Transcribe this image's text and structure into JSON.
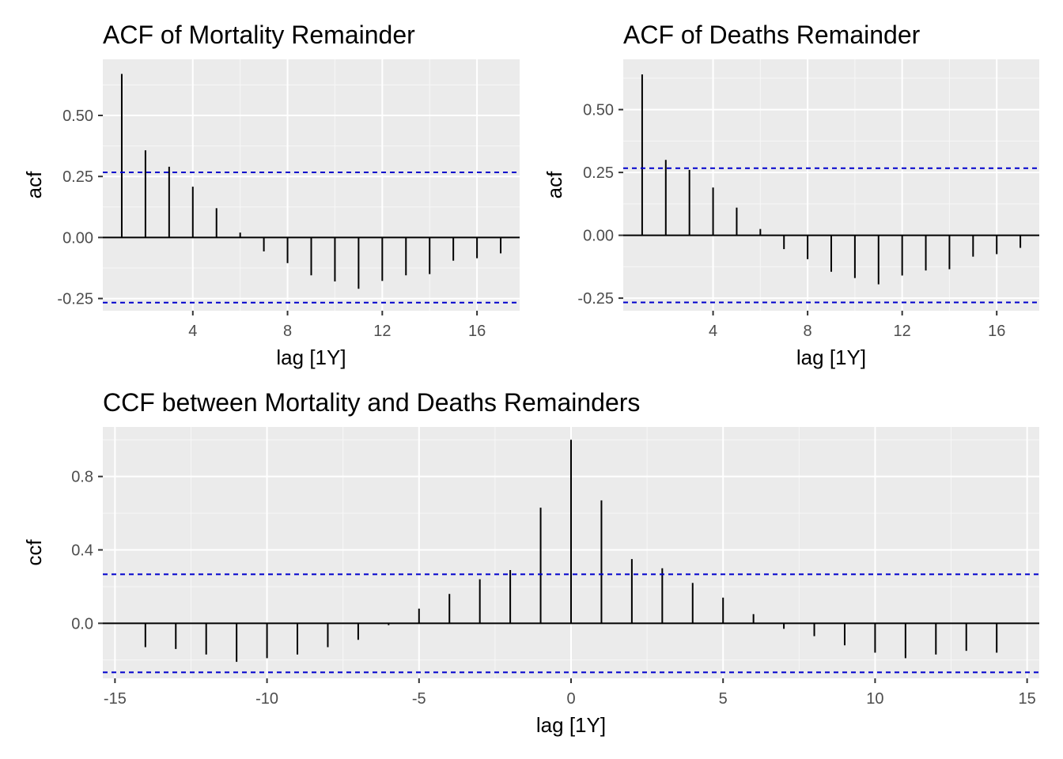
{
  "chart_data": [
    {
      "type": "bar",
      "title": "ACF of Mortality Remainder",
      "xlabel": "lag [1Y]",
      "ylabel": "acf",
      "xlim": [
        0.2,
        17.8
      ],
      "ylim": [
        -0.3,
        0.73
      ],
      "xticks": [
        4,
        8,
        12,
        16
      ],
      "xtick_labels": [
        "4",
        "8",
        "12",
        "16"
      ],
      "yticks": [
        -0.25,
        0,
        0.25,
        0.5
      ],
      "ytick_labels": [
        "-0.25",
        "0.00",
        "0.25",
        "0.50"
      ],
      "ci": 0.267,
      "ci_color": "#0000cc",
      "background": "#ebebeb",
      "grid": true,
      "x": [
        1,
        2,
        3,
        4,
        5,
        6,
        7,
        8,
        9,
        10,
        11,
        12,
        13,
        14,
        15,
        16,
        17
      ],
      "values": [
        0.67,
        0.357,
        0.29,
        0.208,
        0.12,
        0.02,
        -0.057,
        -0.105,
        -0.155,
        -0.18,
        -0.21,
        -0.178,
        -0.155,
        -0.15,
        -0.095,
        -0.085,
        -0.065
      ]
    },
    {
      "type": "bar",
      "title": "ACF of Deaths Remainder",
      "xlabel": "lag [1Y]",
      "ylabel": "acf",
      "xlim": [
        0.2,
        17.8
      ],
      "ylim": [
        -0.3,
        0.7
      ],
      "xticks": [
        4,
        8,
        12,
        16
      ],
      "xtick_labels": [
        "4",
        "8",
        "12",
        "16"
      ],
      "yticks": [
        -0.25,
        0,
        0.25,
        0.5
      ],
      "ytick_labels": [
        "-0.25",
        "0.00",
        "0.25",
        "0.50"
      ],
      "ci": 0.267,
      "ci_color": "#0000cc",
      "background": "#ebebeb",
      "grid": true,
      "x": [
        1,
        2,
        3,
        4,
        5,
        6,
        7,
        8,
        9,
        10,
        11,
        12,
        13,
        14,
        15,
        16,
        17
      ],
      "values": [
        0.64,
        0.3,
        0.26,
        0.19,
        0.11,
        0.025,
        -0.055,
        -0.095,
        -0.145,
        -0.17,
        -0.195,
        -0.16,
        -0.14,
        -0.135,
        -0.085,
        -0.075,
        -0.05
      ]
    },
    {
      "type": "bar",
      "title": "CCF between Mortality and Deaths Remainders",
      "xlabel": "lag [1Y]",
      "ylabel": "ccf",
      "xlim": [
        -15.4,
        15.4
      ],
      "ylim": [
        -0.3,
        1.07
      ],
      "xticks": [
        -15,
        -10,
        -5,
        0,
        5,
        10,
        15
      ],
      "xtick_labels": [
        "-15",
        "-10",
        "-5",
        "0",
        "5",
        "10",
        "15"
      ],
      "yticks": [
        0,
        0.4,
        0.8
      ],
      "ytick_labels": [
        "0.0",
        "0.4",
        "0.8"
      ],
      "ci": 0.267,
      "ci_color": "#0000cc",
      "background": "#ebebeb",
      "grid": true,
      "x": [
        -14,
        -13,
        -12,
        -11,
        -10,
        -9,
        -8,
        -7,
        -6,
        -5,
        -4,
        -3,
        -2,
        -1,
        0,
        1,
        2,
        3,
        4,
        5,
        6,
        7,
        8,
        9,
        10,
        11,
        12,
        13,
        14
      ],
      "values": [
        -0.13,
        -0.14,
        -0.17,
        -0.21,
        -0.19,
        -0.17,
        -0.13,
        -0.09,
        -0.01,
        0.08,
        0.16,
        0.24,
        0.29,
        0.63,
        1.0,
        0.67,
        0.35,
        0.3,
        0.22,
        0.14,
        0.05,
        -0.03,
        -0.07,
        -0.12,
        -0.16,
        -0.19,
        -0.17,
        -0.15,
        -0.16
      ]
    }
  ]
}
